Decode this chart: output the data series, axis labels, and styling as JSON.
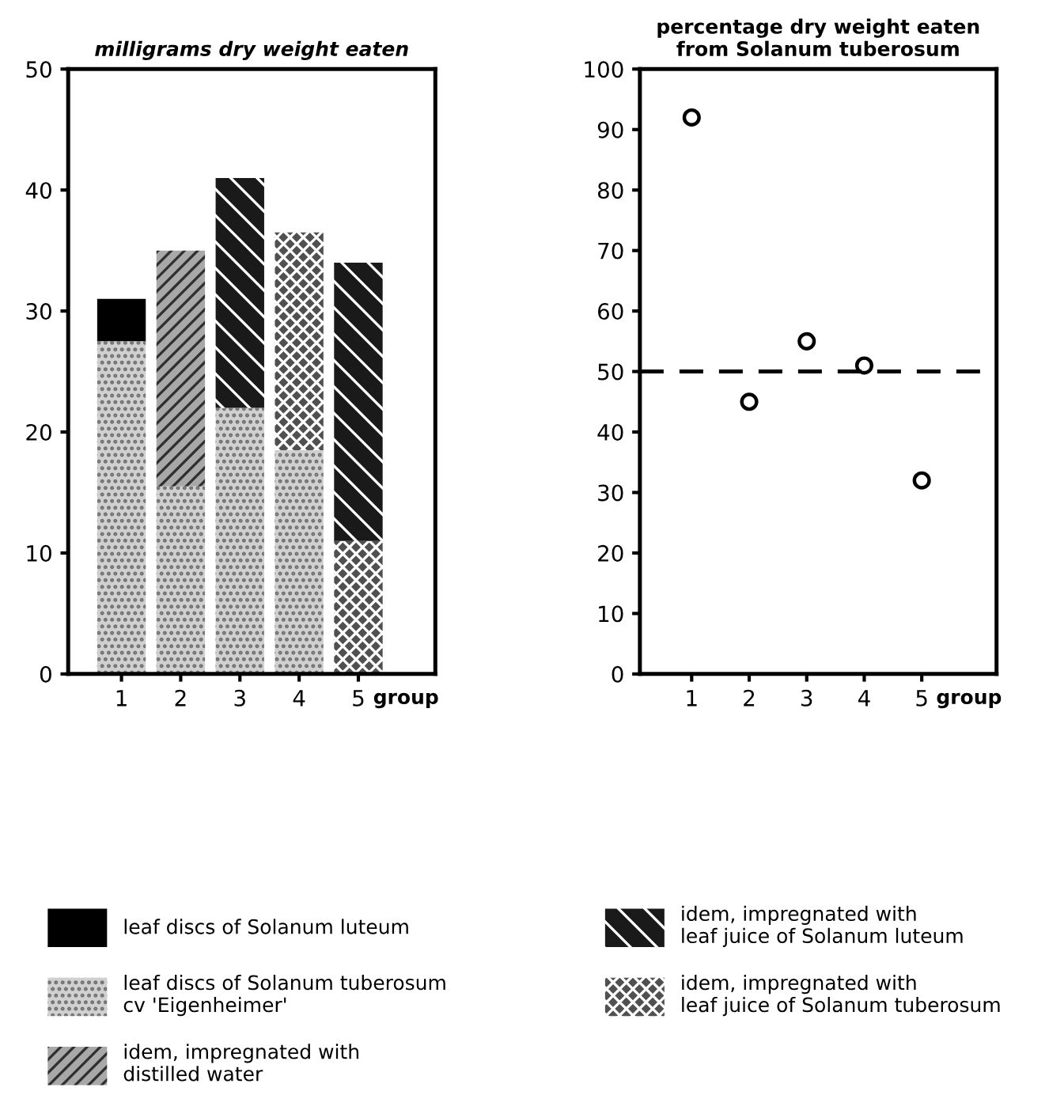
{
  "chart_data": [
    {
      "type": "bar",
      "title": "milligrams dry weight eaten",
      "xlabel": "group",
      "categories": [
        "1",
        "2",
        "3",
        "4",
        "5"
      ],
      "stacked": true,
      "ylim": [
        0,
        50
      ],
      "yticks": [
        0,
        10,
        20,
        30,
        40,
        50
      ],
      "grid": false,
      "legend": "bottom",
      "series": [
        {
          "name": "leaf discs of Solanum tuberosum\ncv 'Eigenheimer'",
          "color": "#d0d0d0",
          "values": [
            27.5,
            15.5,
            22,
            18.5,
            null
          ]
        },
        {
          "name": "idem, impregnated with\nleaf juice of Solanum tuberosum",
          "color": "#505050",
          "values": [
            null,
            null,
            null,
            18,
            11
          ]
        },
        {
          "name": "idem, impregnated with\ndistilled water",
          "color": "#a8a8a8",
          "values": [
            null,
            19.5,
            null,
            null,
            null
          ]
        },
        {
          "name": "idem, impregnated with\nleaf juice of Solanum luteum",
          "color": "#1a1a1a",
          "values": [
            null,
            null,
            19,
            null,
            23
          ]
        },
        {
          "name": "leaf discs of Solanum luteum",
          "color": "#000000",
          "values": [
            3.5,
            null,
            null,
            null,
            null
          ]
        }
      ]
    },
    {
      "type": "scatter",
      "title": "percentage dry weight eaten\nfrom Solanum tuberosum",
      "xlabel": "group",
      "categories": [
        "1",
        "2",
        "3",
        "4",
        "5"
      ],
      "ylim": [
        0,
        100
      ],
      "yticks": [
        0,
        10,
        20,
        30,
        40,
        50,
        60,
        70,
        80,
        90,
        100
      ],
      "grid": false,
      "legend": false,
      "marker": "circle",
      "series": [
        {
          "color": "#000000",
          "values": [
            92,
            45,
            55,
            51,
            32
          ]
        }
      ],
      "ref_lines": [
        {
          "axis": "y",
          "value": 50,
          "line_style": "dashed",
          "color": "#000000"
        }
      ]
    }
  ]
}
